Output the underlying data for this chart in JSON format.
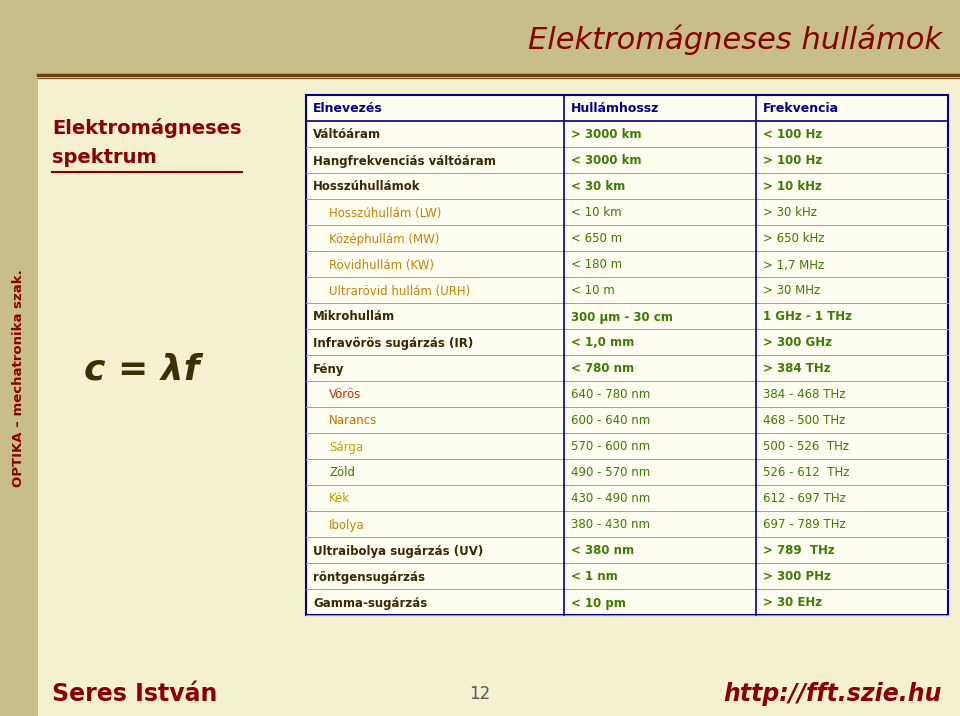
{
  "bg_main": "#f5f0d0",
  "bg_left_bar": "#c8be8a",
  "bg_top_right": "#c8be8a",
  "title_top": "Elektromágneses hullámok",
  "title_top_color": "#8b0000",
  "left_title1": "Elektromágneses",
  "left_title2": "spektrum",
  "left_title_color": "#8b0000",
  "sidebar_text": "OPTIKA – mechatronika szak.",
  "sidebar_color": "#8b0000",
  "footer_left": "Seres István",
  "footer_center": "12",
  "footer_right": "http://fft.szie.hu",
  "footer_color_lr": "#8b0000",
  "footer_color_c": "#555555",
  "col_headers": [
    "Elnevezés",
    "Hullámhossz",
    "Frekvencia"
  ],
  "col_header_color": "#00008b",
  "table_rows": [
    {
      "name": "Váltóáram",
      "wave": "> 3000 km",
      "freq": "< 100 Hz",
      "name_color": "#3a2800",
      "indent": false,
      "bold": true
    },
    {
      "name": "Hangfrekvenciás váltóáram",
      "wave": "< 3000 km",
      "freq": "> 100 Hz",
      "name_color": "#3a2800",
      "indent": false,
      "bold": true
    },
    {
      "name": "Hosszúhullámok",
      "wave": "< 30 km",
      "freq": "> 10 kHz",
      "name_color": "#3a2800",
      "indent": false,
      "bold": true
    },
    {
      "name": "Hosszúhullám (LW)",
      "wave": "< 10 km",
      "freq": "> 30 kHz",
      "name_color": "#c8820a",
      "indent": true,
      "bold": false
    },
    {
      "name": "Középhullám (MW)",
      "wave": "< 650 m",
      "freq": "> 650 kHz",
      "name_color": "#c8820a",
      "indent": true,
      "bold": false
    },
    {
      "name": "Rövidhullám (KW)",
      "wave": "< 180 m",
      "freq": "> 1,7 MHz",
      "name_color": "#c8820a",
      "indent": true,
      "bold": false
    },
    {
      "name": "Ultrarövid hullám (URH)",
      "wave": "< 10 m",
      "freq": "> 30 MHz",
      "name_color": "#c8820a",
      "indent": true,
      "bold": false
    },
    {
      "name": "Mikrohullám",
      "wave": "300 μm - 30 cm",
      "freq": "1 GHz - 1 THz",
      "name_color": "#3a2800",
      "indent": false,
      "bold": true
    },
    {
      "name": "Infravörös sugárzás (IR)",
      "wave": "< 1,0 mm",
      "freq": "> 300 GHz",
      "name_color": "#3a2800",
      "indent": false,
      "bold": true
    },
    {
      "name": "Fény",
      "wave": "< 780 nm",
      "freq": "> 384 THz",
      "name_color": "#3a2800",
      "indent": false,
      "bold": true
    },
    {
      "name": "Vörös",
      "wave": "640 - 780 nm",
      "freq": "384 - 468 THz",
      "name_color": "#c83000",
      "indent": true,
      "bold": false
    },
    {
      "name": "Narancs",
      "wave": "600 - 640 nm",
      "freq": "468 - 500 THz",
      "name_color": "#c87000",
      "indent": true,
      "bold": false
    },
    {
      "name": "Sárga",
      "wave": "570 - 600 nm",
      "freq": "500 - 526  THz",
      "name_color": "#c8a000",
      "indent": true,
      "bold": false
    },
    {
      "name": "Zöld",
      "wave": "490 - 570 nm",
      "freq": "526 - 612  THz",
      "name_color": "#3a7d00",
      "indent": true,
      "bold": false
    },
    {
      "name": "Kék",
      "wave": "430 - 490 nm",
      "freq": "612 - 697 THz",
      "name_color": "#b8a000",
      "indent": true,
      "bold": false
    },
    {
      "name": "Ibolya",
      "wave": "380 - 430 nm",
      "freq": "697 - 789 THz",
      "name_color": "#c8820a",
      "indent": true,
      "bold": false
    },
    {
      "name": "Ultraibolya sugárzás (UV)",
      "wave": "< 380 nm",
      "freq": "> 789  THz",
      "name_color": "#3a2800",
      "indent": false,
      "bold": true
    },
    {
      "name": "röntgensugárzás",
      "wave": "< 1 nm",
      "freq": "> 300 PHz",
      "name_color": "#3a2800",
      "indent": false,
      "bold": true
    },
    {
      "name": "Gamma-sugárzás",
      "wave": "< 10 pm",
      "freq": "> 30 EHz",
      "name_color": "#3a2800",
      "indent": false,
      "bold": true
    }
  ],
  "wave_color": "#3a7d00",
  "freq_color": "#3a7d00",
  "table_border_color": "#00008b",
  "table_line_color": "#9999cc"
}
